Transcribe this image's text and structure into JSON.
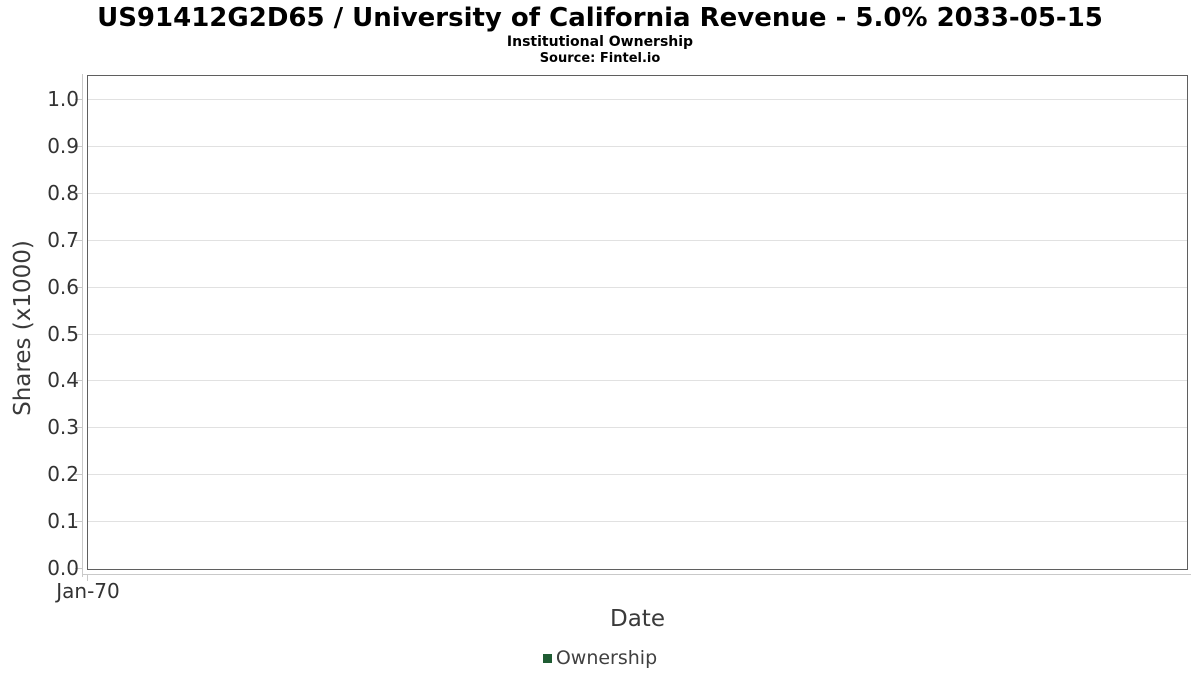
{
  "header": {
    "title": "US91412G2D65 / University of California Revenue - 5.0% 2033-05-15",
    "subtitle": "Institutional Ownership",
    "source": "Source: Fintel.io"
  },
  "chart_data": {
    "type": "line",
    "title": "US91412G2D65 / University of California Revenue - 5.0% 2033-05-15",
    "subtitle": "Institutional Ownership",
    "source": "Source: Fintel.io",
    "xlabel": "Date",
    "ylabel": "Shares (x1000)",
    "ylim": [
      0.0,
      1.0
    ],
    "yticks": [
      0.0,
      0.1,
      0.2,
      0.3,
      0.4,
      0.5,
      0.6,
      0.7,
      0.8,
      0.9,
      1.0
    ],
    "ytick_labels": [
      "0.0",
      "0.1",
      "0.2",
      "0.3",
      "0.4",
      "0.5",
      "0.6",
      "0.7",
      "0.8",
      "0.9",
      "1.0"
    ],
    "xtick_labels": [
      "Jan-70"
    ],
    "grid": "horizontal-only",
    "legend": {
      "position": "bottom-center",
      "entries": [
        {
          "label": "Ownership",
          "color": "#1f5c33"
        }
      ]
    },
    "series": [
      {
        "name": "Ownership",
        "color": "#1f5c33",
        "x": [],
        "y": []
      }
    ]
  },
  "colors": {
    "accent_green": "#1f5c33",
    "plot_border": "#5f5f5f",
    "gridline": "#e1e1e1",
    "axis_line": "#c9c9c9",
    "tick_text": "#333333",
    "axis_title_text": "#3a3a3a",
    "title_text": "#000000",
    "background": "#ffffff"
  }
}
